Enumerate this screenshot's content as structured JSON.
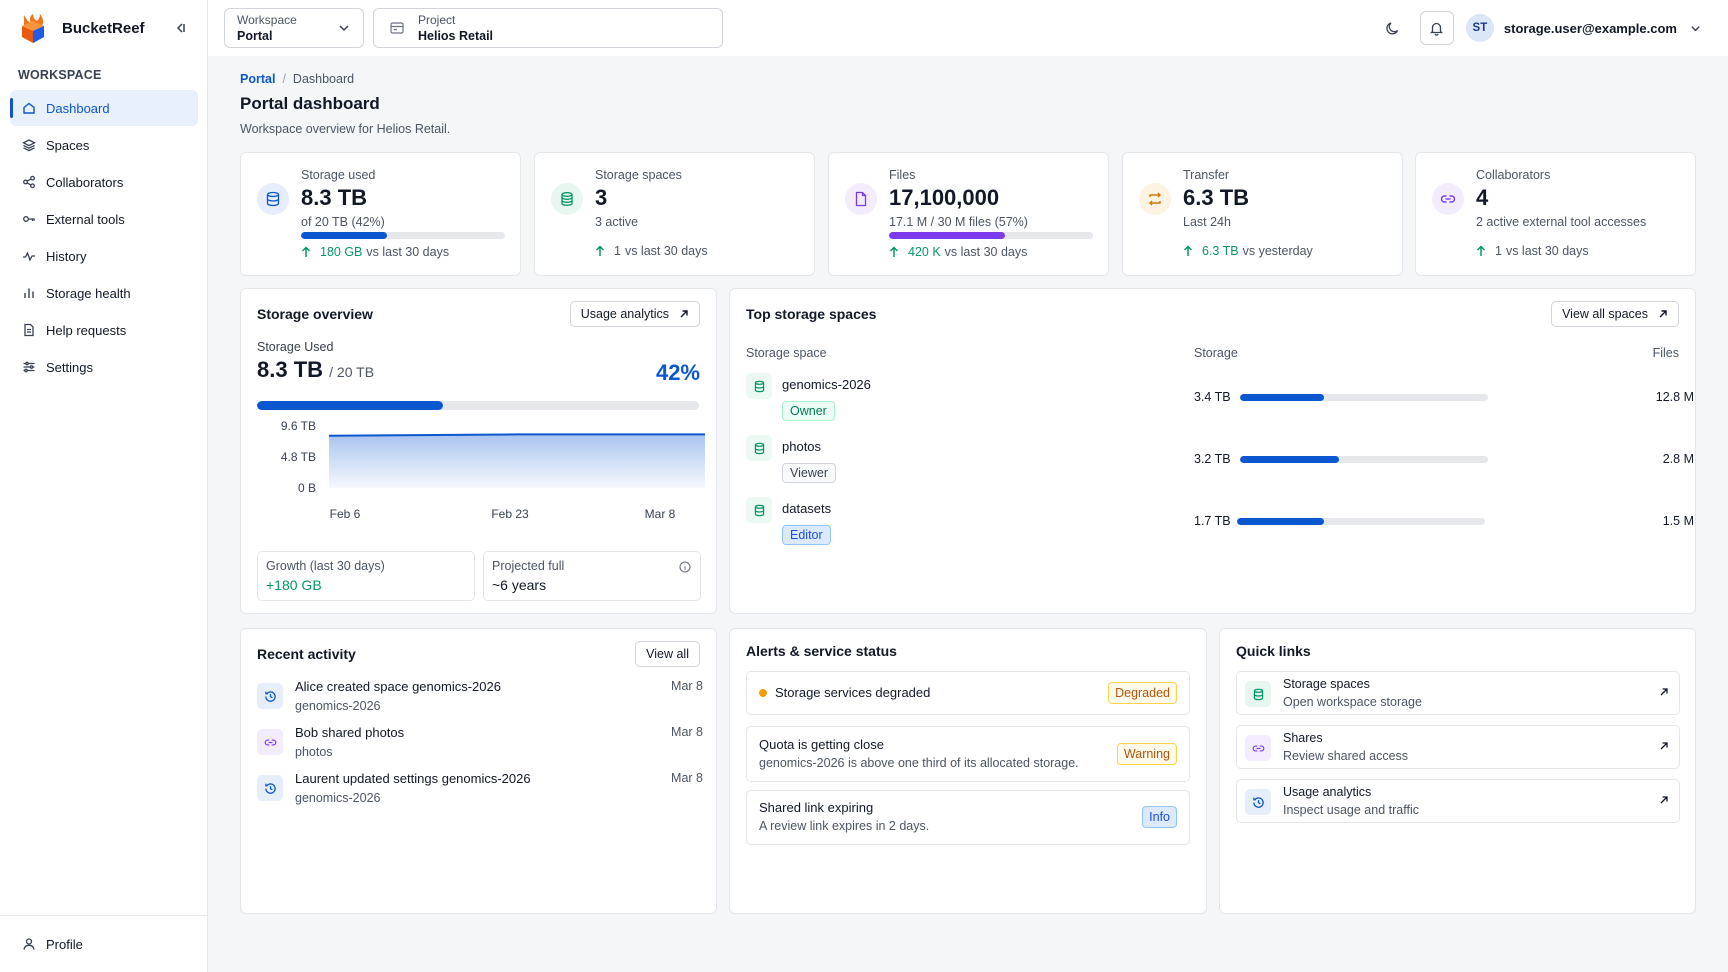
{
  "app": {
    "name": "BucketReef"
  },
  "sidebar": {
    "section": "WORKSPACE",
    "items": [
      {
        "label": "Dashboard",
        "icon": "home-icon",
        "active": true
      },
      {
        "label": "Spaces",
        "icon": "layers-icon"
      },
      {
        "label": "Collaborators",
        "icon": "share-icon"
      },
      {
        "label": "External tools",
        "icon": "key-icon"
      },
      {
        "label": "History",
        "icon": "activity-icon"
      },
      {
        "label": "Storage health",
        "icon": "bar-chart-icon"
      },
      {
        "label": "Help requests",
        "icon": "document-icon"
      },
      {
        "label": "Settings",
        "icon": "sliders-icon"
      }
    ],
    "footer": "Profile"
  },
  "topbar": {
    "workspace_label": "Workspace",
    "workspace_value": "Portal",
    "project_label": "Project",
    "project_value": "Helios Retail",
    "user_initials": "ST",
    "user_email": "storage.user@example.com"
  },
  "page": {
    "breadcrumb_root": "Portal",
    "breadcrumb_sep": "/",
    "breadcrumb_current": "Dashboard",
    "title": "Portal dashboard",
    "subtitle": "Workspace overview for Helios Retail."
  },
  "stats": [
    {
      "label": "Storage used",
      "value": "8.3 TB",
      "sub": "of 20 TB (42%)",
      "progress": 0.42,
      "bar_color": "#0b57d0",
      "delta_value": "180 GB",
      "delta_text": "vs last 30 days",
      "icon": "database-icon",
      "tint": "#e6eefb",
      "icon_color": "#0b57d0"
    },
    {
      "label": "Storage spaces",
      "value": "3",
      "sub": "3 active",
      "delta_value": "1",
      "delta_text": "vs last 30 days",
      "icon": "storage-icon",
      "tint": "#e7f7ef",
      "icon_color": "#059669",
      "delta_plain": true
    },
    {
      "label": "Files",
      "value": "17,100,000",
      "sub": "17.1 M / 30 M files (57%)",
      "progress": 0.57,
      "bar_color": "#7c3aed",
      "delta_value": "420 K",
      "delta_text": "vs last 30 days",
      "icon": "file-icon",
      "tint": "#f3ecfd",
      "icon_color": "#7c3aed"
    },
    {
      "label": "Transfer",
      "value": "6.3 TB",
      "sub": "Last 24h",
      "delta_value": "6.3 TB",
      "delta_text": "vs yesterday",
      "icon": "transfer-icon",
      "tint": "#fdf3e2",
      "icon_color": "#d97706"
    },
    {
      "label": "Collaborators",
      "value": "4",
      "sub": "2 active external tool accesses",
      "delta_value": "1",
      "delta_text": "vs last 30 days",
      "icon": "link-icon",
      "tint": "#f3ecfd",
      "icon_color": "#7c3aed",
      "delta_plain": true
    }
  ],
  "overview": {
    "title": "Storage overview",
    "button": "Usage analytics",
    "label": "Storage Used",
    "value": "8.3 TB",
    "of": "/ 20 TB",
    "percent": "42%",
    "progress": 0.42,
    "growth_label": "Growth (last 30 days)",
    "growth_value": "+180 GB",
    "projected_label": "Projected full",
    "projected_value": "~6 years"
  },
  "chart_data": {
    "type": "area",
    "x": [
      "Feb 6",
      "Feb 23",
      "Mar 8"
    ],
    "values": [
      8.1,
      8.3,
      8.3
    ],
    "y_ticks": [
      "9.6 TB",
      "4.8 TB",
      "0 B"
    ],
    "ylim": [
      0,
      9.6
    ],
    "xlabel": "",
    "ylabel": "",
    "color": "#0b57d0"
  },
  "top_spaces": {
    "title": "Top storage spaces",
    "button": "View all spaces",
    "col_space": "Storage space",
    "col_storage": "Storage",
    "col_files": "Files",
    "rows": [
      {
        "name": "genomics-2026",
        "role": "Owner",
        "role_class": "owner",
        "storage": "3.4 TB",
        "share": 0.34,
        "files": "12.8 M"
      },
      {
        "name": "photos",
        "role": "Viewer",
        "role_class": "viewer",
        "storage": "3.2 TB",
        "share": 0.4,
        "files": "2.8 M"
      },
      {
        "name": "datasets",
        "role": "Editor",
        "role_class": "editor",
        "storage": "1.7 TB",
        "share": 0.35,
        "files": "1.5 M"
      }
    ]
  },
  "activity": {
    "title": "Recent activity",
    "button": "View all",
    "items": [
      {
        "title": "Alice created space genomics-2026",
        "sub": "genomics-2026",
        "date": "Mar 8",
        "icon": "history-icon",
        "tint": "#e6eefb",
        "icon_color": "#0b57d0"
      },
      {
        "title": "Bob shared photos",
        "sub": "photos",
        "date": "Mar 8",
        "icon": "link-icon",
        "tint": "#f3ecfd",
        "icon_color": "#7c3aed"
      },
      {
        "title": "Laurent updated settings genomics-2026",
        "sub": "genomics-2026",
        "date": "Mar 8",
        "icon": "history-icon",
        "tint": "#e6eefb",
        "icon_color": "#0b57d0"
      }
    ]
  },
  "alerts": {
    "title": "Alerts & service status",
    "items": [
      {
        "title": "Storage services degraded",
        "badge": "Degraded"
      },
      {
        "title": "Quota is getting close",
        "sub": "genomics-2026 is above one third of its allocated storage.",
        "badge": "Warning"
      },
      {
        "title": "Shared link expiring",
        "sub": "A review link expires in 2 days.",
        "badge": "Info"
      }
    ]
  },
  "quick_links": {
    "title": "Quick links",
    "items": [
      {
        "title": "Storage spaces",
        "sub": "Open workspace storage",
        "icon": "storage-icon",
        "tint": "#e7f7ef",
        "icon_color": "#059669"
      },
      {
        "title": "Shares",
        "sub": "Review shared access",
        "icon": "link-icon",
        "tint": "#f3ecfd",
        "icon_color": "#7c3aed"
      },
      {
        "title": "Usage analytics",
        "sub": "Inspect usage and traffic",
        "icon": "history-icon",
        "tint": "#e6eefb",
        "icon_color": "#0b57d0"
      }
    ]
  }
}
